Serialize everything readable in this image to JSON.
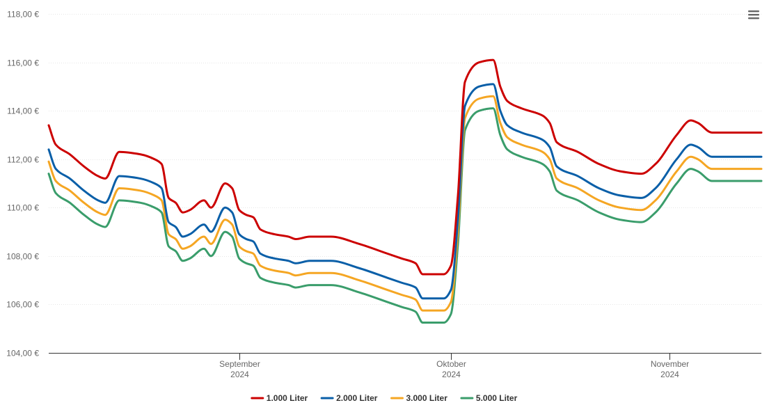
{
  "menu": {
    "icon": "hamburger-menu-icon"
  },
  "chart_data": {
    "type": "line",
    "y_labels": [
      "104,00 €",
      "106,00 €",
      "108,00 €",
      "110,00 €",
      "112,00 €",
      "114,00 €",
      "116,00 €",
      "118,00 €"
    ],
    "y_values": [
      104,
      106,
      108,
      110,
      112,
      114,
      116,
      118
    ],
    "ylim": [
      104,
      118
    ],
    "xlim": [
      "2024-08-05",
      "2024-11-14"
    ],
    "x_ticks": [
      {
        "date": "2024-09-01",
        "month": "September",
        "year": "2024"
      },
      {
        "date": "2024-10-01",
        "month": "Oktober",
        "year": "2024"
      },
      {
        "date": "2024-11-01",
        "month": "November",
        "year": "2024"
      }
    ],
    "grid": true,
    "legend_position": "bottom-center",
    "series": [
      {
        "name": "1.000 Liter",
        "color": "#cc0000",
        "points": [
          [
            "2024-08-05",
            113.4
          ],
          [
            "2024-08-06",
            112.6
          ],
          [
            "2024-08-08",
            112.2
          ],
          [
            "2024-08-10",
            111.7
          ],
          [
            "2024-08-12",
            111.3
          ],
          [
            "2024-08-13",
            111.2
          ],
          [
            "2024-08-15",
            112.3
          ],
          [
            "2024-08-18",
            112.2
          ],
          [
            "2024-08-20",
            112.0
          ],
          [
            "2024-08-21",
            111.8
          ],
          [
            "2024-08-22",
            110.4
          ],
          [
            "2024-08-23",
            110.2
          ],
          [
            "2024-08-24",
            109.8
          ],
          [
            "2024-08-25",
            109.9
          ],
          [
            "2024-08-27",
            110.3
          ],
          [
            "2024-08-28",
            110.0
          ],
          [
            "2024-08-30",
            111.0
          ],
          [
            "2024-08-31",
            110.8
          ],
          [
            "2024-09-01",
            109.9
          ],
          [
            "2024-09-02",
            109.7
          ],
          [
            "2024-09-03",
            109.6
          ],
          [
            "2024-09-04",
            109.1
          ],
          [
            "2024-09-06",
            108.9
          ],
          [
            "2024-09-08",
            108.8
          ],
          [
            "2024-09-09",
            108.7
          ],
          [
            "2024-09-11",
            108.8
          ],
          [
            "2024-09-14",
            108.8
          ],
          [
            "2024-09-18",
            108.5
          ],
          [
            "2024-09-22",
            108.1
          ],
          [
            "2024-09-24",
            107.9
          ],
          [
            "2024-09-26",
            107.7
          ],
          [
            "2024-09-27",
            107.25
          ],
          [
            "2024-09-30",
            107.25
          ],
          [
            "2024-10-01",
            107.6
          ],
          [
            "2024-10-02",
            110.5
          ],
          [
            "2024-10-03",
            115.2
          ],
          [
            "2024-10-05",
            116.0
          ],
          [
            "2024-10-07",
            116.1
          ],
          [
            "2024-10-08",
            115.0
          ],
          [
            "2024-10-09",
            114.4
          ],
          [
            "2024-10-11",
            114.1
          ],
          [
            "2024-10-14",
            113.8
          ],
          [
            "2024-10-15",
            113.5
          ],
          [
            "2024-10-16",
            112.7
          ],
          [
            "2024-10-19",
            112.3
          ],
          [
            "2024-10-22",
            111.8
          ],
          [
            "2024-10-25",
            111.5
          ],
          [
            "2024-10-28",
            111.4
          ],
          [
            "2024-10-30",
            111.8
          ],
          [
            "2024-11-02",
            113.0
          ],
          [
            "2024-11-04",
            113.6
          ],
          [
            "2024-11-05",
            113.5
          ],
          [
            "2024-11-07",
            113.1
          ],
          [
            "2024-11-14",
            113.1
          ]
        ]
      },
      {
        "name": "2.000 Liter",
        "color": "#0a5fa8",
        "points": [
          [
            "2024-08-05",
            112.4
          ],
          [
            "2024-08-06",
            111.6
          ],
          [
            "2024-08-08",
            111.2
          ],
          [
            "2024-08-10",
            110.7
          ],
          [
            "2024-08-12",
            110.3
          ],
          [
            "2024-08-13",
            110.2
          ],
          [
            "2024-08-15",
            111.3
          ],
          [
            "2024-08-18",
            111.2
          ],
          [
            "2024-08-20",
            111.0
          ],
          [
            "2024-08-21",
            110.8
          ],
          [
            "2024-08-22",
            109.4
          ],
          [
            "2024-08-23",
            109.2
          ],
          [
            "2024-08-24",
            108.8
          ],
          [
            "2024-08-25",
            108.9
          ],
          [
            "2024-08-27",
            109.3
          ],
          [
            "2024-08-28",
            109.0
          ],
          [
            "2024-08-30",
            110.0
          ],
          [
            "2024-08-31",
            109.8
          ],
          [
            "2024-09-01",
            108.9
          ],
          [
            "2024-09-02",
            108.7
          ],
          [
            "2024-09-03",
            108.6
          ],
          [
            "2024-09-04",
            108.1
          ],
          [
            "2024-09-06",
            107.9
          ],
          [
            "2024-09-08",
            107.8
          ],
          [
            "2024-09-09",
            107.7
          ],
          [
            "2024-09-11",
            107.8
          ],
          [
            "2024-09-14",
            107.8
          ],
          [
            "2024-09-18",
            107.5
          ],
          [
            "2024-09-22",
            107.1
          ],
          [
            "2024-09-24",
            106.9
          ],
          [
            "2024-09-26",
            106.7
          ],
          [
            "2024-09-27",
            106.25
          ],
          [
            "2024-09-30",
            106.25
          ],
          [
            "2024-10-01",
            106.6
          ],
          [
            "2024-10-02",
            109.5
          ],
          [
            "2024-10-03",
            114.2
          ],
          [
            "2024-10-05",
            115.0
          ],
          [
            "2024-10-07",
            115.1
          ],
          [
            "2024-10-08",
            114.0
          ],
          [
            "2024-10-09",
            113.4
          ],
          [
            "2024-10-11",
            113.1
          ],
          [
            "2024-10-14",
            112.8
          ],
          [
            "2024-10-15",
            112.5
          ],
          [
            "2024-10-16",
            111.7
          ],
          [
            "2024-10-19",
            111.3
          ],
          [
            "2024-10-22",
            110.8
          ],
          [
            "2024-10-25",
            110.5
          ],
          [
            "2024-10-28",
            110.4
          ],
          [
            "2024-10-30",
            110.8
          ],
          [
            "2024-11-02",
            112.0
          ],
          [
            "2024-11-04",
            112.6
          ],
          [
            "2024-11-05",
            112.5
          ],
          [
            "2024-11-07",
            112.1
          ],
          [
            "2024-11-14",
            112.1
          ]
        ]
      },
      {
        "name": "3.000 Liter",
        "color": "#f5a623",
        "points": [
          [
            "2024-08-05",
            111.9
          ],
          [
            "2024-08-06",
            111.1
          ],
          [
            "2024-08-08",
            110.7
          ],
          [
            "2024-08-10",
            110.2
          ],
          [
            "2024-08-12",
            109.8
          ],
          [
            "2024-08-13",
            109.7
          ],
          [
            "2024-08-15",
            110.8
          ],
          [
            "2024-08-18",
            110.7
          ],
          [
            "2024-08-20",
            110.5
          ],
          [
            "2024-08-21",
            110.3
          ],
          [
            "2024-08-22",
            108.9
          ],
          [
            "2024-08-23",
            108.7
          ],
          [
            "2024-08-24",
            108.3
          ],
          [
            "2024-08-25",
            108.4
          ],
          [
            "2024-08-27",
            108.8
          ],
          [
            "2024-08-28",
            108.5
          ],
          [
            "2024-08-30",
            109.5
          ],
          [
            "2024-08-31",
            109.3
          ],
          [
            "2024-09-01",
            108.4
          ],
          [
            "2024-09-02",
            108.2
          ],
          [
            "2024-09-03",
            108.1
          ],
          [
            "2024-09-04",
            107.6
          ],
          [
            "2024-09-06",
            107.4
          ],
          [
            "2024-09-08",
            107.3
          ],
          [
            "2024-09-09",
            107.2
          ],
          [
            "2024-09-11",
            107.3
          ],
          [
            "2024-09-14",
            107.3
          ],
          [
            "2024-09-18",
            107.0
          ],
          [
            "2024-09-22",
            106.6
          ],
          [
            "2024-09-24",
            106.4
          ],
          [
            "2024-09-26",
            106.2
          ],
          [
            "2024-09-27",
            105.75
          ],
          [
            "2024-09-30",
            105.75
          ],
          [
            "2024-10-01",
            106.1
          ],
          [
            "2024-10-02",
            109.0
          ],
          [
            "2024-10-03",
            113.7
          ],
          [
            "2024-10-05",
            114.5
          ],
          [
            "2024-10-07",
            114.6
          ],
          [
            "2024-10-08",
            113.5
          ],
          [
            "2024-10-09",
            112.9
          ],
          [
            "2024-10-11",
            112.6
          ],
          [
            "2024-10-14",
            112.3
          ],
          [
            "2024-10-15",
            112.0
          ],
          [
            "2024-10-16",
            111.2
          ],
          [
            "2024-10-19",
            110.8
          ],
          [
            "2024-10-22",
            110.3
          ],
          [
            "2024-10-25",
            110.0
          ],
          [
            "2024-10-28",
            109.9
          ],
          [
            "2024-10-30",
            110.3
          ],
          [
            "2024-11-02",
            111.5
          ],
          [
            "2024-11-04",
            112.1
          ],
          [
            "2024-11-05",
            112.0
          ],
          [
            "2024-11-07",
            111.6
          ],
          [
            "2024-11-14",
            111.6
          ]
        ]
      },
      {
        "name": "5.000 Liter",
        "color": "#3a9d6b",
        "points": [
          [
            "2024-08-05",
            111.4
          ],
          [
            "2024-08-06",
            110.6
          ],
          [
            "2024-08-08",
            110.2
          ],
          [
            "2024-08-10",
            109.7
          ],
          [
            "2024-08-12",
            109.3
          ],
          [
            "2024-08-13",
            109.2
          ],
          [
            "2024-08-15",
            110.3
          ],
          [
            "2024-08-18",
            110.2
          ],
          [
            "2024-08-20",
            110.0
          ],
          [
            "2024-08-21",
            109.8
          ],
          [
            "2024-08-22",
            108.4
          ],
          [
            "2024-08-23",
            108.2
          ],
          [
            "2024-08-24",
            107.8
          ],
          [
            "2024-08-25",
            107.9
          ],
          [
            "2024-08-27",
            108.3
          ],
          [
            "2024-08-28",
            108.0
          ],
          [
            "2024-08-30",
            109.0
          ],
          [
            "2024-08-31",
            108.8
          ],
          [
            "2024-09-01",
            107.9
          ],
          [
            "2024-09-02",
            107.7
          ],
          [
            "2024-09-03",
            107.6
          ],
          [
            "2024-09-04",
            107.1
          ],
          [
            "2024-09-06",
            106.9
          ],
          [
            "2024-09-08",
            106.8
          ],
          [
            "2024-09-09",
            106.7
          ],
          [
            "2024-09-11",
            106.8
          ],
          [
            "2024-09-14",
            106.8
          ],
          [
            "2024-09-18",
            106.5
          ],
          [
            "2024-09-22",
            106.1
          ],
          [
            "2024-09-24",
            105.9
          ],
          [
            "2024-09-26",
            105.7
          ],
          [
            "2024-09-27",
            105.25
          ],
          [
            "2024-09-30",
            105.25
          ],
          [
            "2024-10-01",
            105.6
          ],
          [
            "2024-10-02",
            108.5
          ],
          [
            "2024-10-03",
            113.2
          ],
          [
            "2024-10-05",
            114.0
          ],
          [
            "2024-10-07",
            114.1
          ],
          [
            "2024-10-08",
            113.0
          ],
          [
            "2024-10-09",
            112.4
          ],
          [
            "2024-10-11",
            112.1
          ],
          [
            "2024-10-14",
            111.8
          ],
          [
            "2024-10-15",
            111.5
          ],
          [
            "2024-10-16",
            110.7
          ],
          [
            "2024-10-19",
            110.3
          ],
          [
            "2024-10-22",
            109.8
          ],
          [
            "2024-10-25",
            109.5
          ],
          [
            "2024-10-28",
            109.4
          ],
          [
            "2024-10-30",
            109.8
          ],
          [
            "2024-11-02",
            111.0
          ],
          [
            "2024-11-04",
            111.6
          ],
          [
            "2024-11-05",
            111.5
          ],
          [
            "2024-11-07",
            111.1
          ],
          [
            "2024-11-14",
            111.1
          ]
        ]
      }
    ]
  }
}
